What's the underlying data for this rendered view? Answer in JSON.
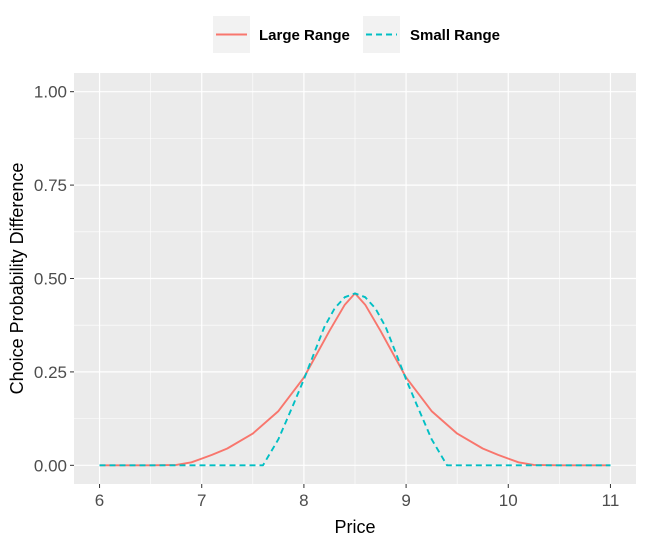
{
  "chart_data": {
    "type": "line",
    "xlabel": "Price",
    "ylabel": "Choice Probability Difference",
    "xlim": [
      5.75,
      11.25
    ],
    "ylim": [
      -0.05,
      1.05
    ],
    "x_ticks": [
      6,
      7,
      8,
      9,
      10,
      11
    ],
    "x_tick_labels": [
      "6",
      "7",
      "8",
      "9",
      "10",
      "11"
    ],
    "y_ticks": [
      0,
      0.25,
      0.5,
      0.75,
      1
    ],
    "y_tick_labels": [
      "0.00",
      "0.25",
      "0.50",
      "0.75",
      "1.00"
    ],
    "grid": true,
    "legend_position": "top",
    "series": [
      {
        "name": "Large Range",
        "color": "#F8766D",
        "dash": "solid",
        "points": [
          [
            6.0,
            0.0
          ],
          [
            6.5,
            0.0
          ],
          [
            6.75,
            0.001
          ],
          [
            6.9,
            0.008
          ],
          [
            7.0,
            0.018
          ],
          [
            7.1,
            0.028
          ],
          [
            7.25,
            0.045
          ],
          [
            7.5,
            0.085
          ],
          [
            7.75,
            0.145
          ],
          [
            8.0,
            0.235
          ],
          [
            8.25,
            0.36
          ],
          [
            8.4,
            0.43
          ],
          [
            8.5,
            0.46
          ],
          [
            8.6,
            0.43
          ],
          [
            8.75,
            0.36
          ],
          [
            9.0,
            0.235
          ],
          [
            9.25,
            0.145
          ],
          [
            9.5,
            0.085
          ],
          [
            9.75,
            0.045
          ],
          [
            9.9,
            0.028
          ],
          [
            10.0,
            0.018
          ],
          [
            10.1,
            0.008
          ],
          [
            10.25,
            0.001
          ],
          [
            10.5,
            0.0
          ],
          [
            11.0,
            0.0
          ]
        ]
      },
      {
        "name": "Small Range",
        "color": "#00BFC4",
        "dash": "dashed",
        "points": [
          [
            6.0,
            0.0
          ],
          [
            7.6,
            0.0
          ],
          [
            7.75,
            0.07
          ],
          [
            7.9,
            0.165
          ],
          [
            8.0,
            0.23
          ],
          [
            8.1,
            0.3
          ],
          [
            8.2,
            0.37
          ],
          [
            8.3,
            0.42
          ],
          [
            8.4,
            0.45
          ],
          [
            8.5,
            0.46
          ],
          [
            8.6,
            0.45
          ],
          [
            8.7,
            0.42
          ],
          [
            8.8,
            0.37
          ],
          [
            8.9,
            0.3
          ],
          [
            9.0,
            0.23
          ],
          [
            9.1,
            0.165
          ],
          [
            9.25,
            0.07
          ],
          [
            9.4,
            0.0
          ],
          [
            11.0,
            0.0
          ]
        ]
      }
    ]
  }
}
